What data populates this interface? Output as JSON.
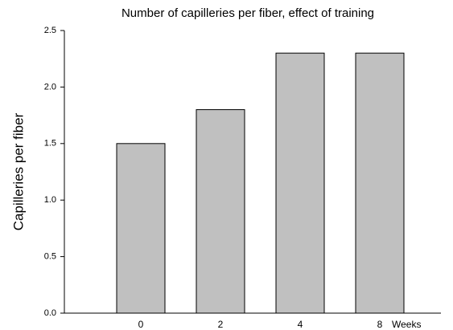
{
  "chart_data": {
    "type": "bar",
    "title": "Number of capilleries per fiber, effect of training",
    "y_label": "Capilleries per fiber",
    "x_label": "Weeks",
    "categories": [
      "0",
      "2",
      "4",
      "8"
    ],
    "values": [
      1.5,
      1.8,
      2.3,
      2.3
    ],
    "color": "#c0c0c0",
    "ylim": [
      0,
      2.5
    ],
    "yticks": [
      {
        "value": 0,
        "label": "0.0"
      },
      0.5,
      {
        "value": 1,
        "label": "1.0"
      },
      1.5,
      {
        "value": 2,
        "label": "2.0"
      },
      2.5
    ],
    "grid": false
  }
}
